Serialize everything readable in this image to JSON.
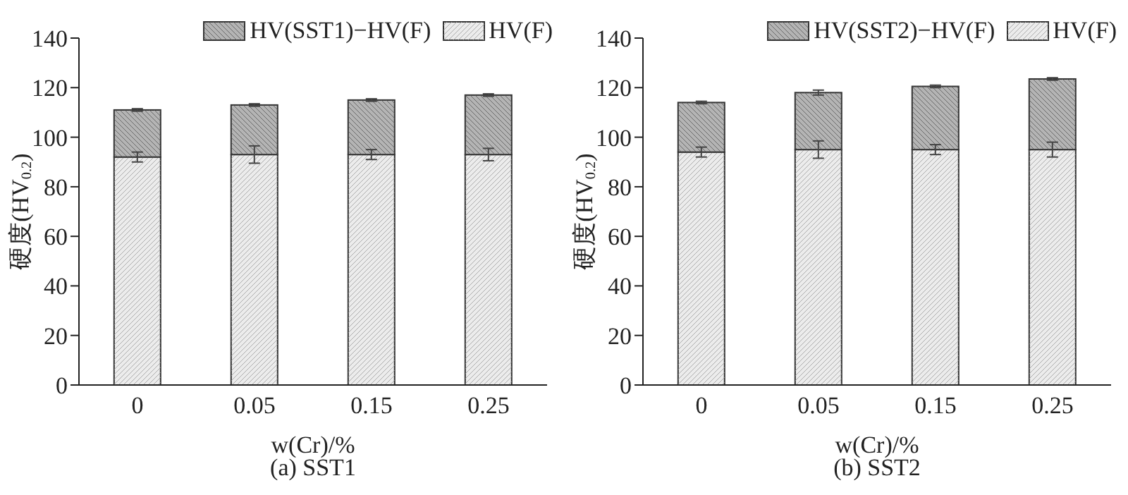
{
  "chart_data": [
    {
      "type": "bar",
      "stacked": true,
      "xlabel": "w(Cr)/%",
      "ylabel": "硬度(HV$_{0.2}$)",
      "annotations": [
        "(a) SST1"
      ],
      "categories": [
        "0",
        "0.05",
        "0.15",
        "0.25"
      ],
      "ylim": [
        0,
        140
      ],
      "yticks": [
        0,
        20,
        40,
        60,
        80,
        100,
        120,
        140
      ],
      "legend": "top right",
      "series": [
        {
          "name": "HV(F)",
          "color": "#ececec",
          "values": [
            92,
            93,
            93,
            93
          ],
          "errors": [
            2,
            3.5,
            2,
            2.5
          ]
        },
        {
          "name": "HV(SST1)−HV(F)",
          "color": "#b4b4b4",
          "values": [
            19,
            20,
            22,
            24
          ],
          "errors": [
            0.5,
            0.5,
            0.5,
            0.5
          ]
        }
      ]
    },
    {
      "type": "bar",
      "stacked": true,
      "xlabel": "w(Cr)/%",
      "ylabel": "硬度(HV$_{0.2}$)",
      "annotations": [
        "(b) SST2"
      ],
      "categories": [
        "0",
        "0.05",
        "0.15",
        "0.25"
      ],
      "ylim": [
        0,
        140
      ],
      "yticks": [
        0,
        20,
        40,
        60,
        80,
        100,
        120,
        140
      ],
      "legend": "top right",
      "series": [
        {
          "name": "HV(F)",
          "color": "#ececec",
          "values": [
            94,
            95,
            95,
            95
          ],
          "errors": [
            2,
            3.5,
            2,
            3
          ]
        },
        {
          "name": "HV(SST2)−HV(F)",
          "color": "#b4b4b4",
          "values": [
            20,
            23,
            25.5,
            28.5
          ],
          "errors": [
            0.5,
            1,
            0.5,
            0.5
          ]
        }
      ]
    }
  ]
}
